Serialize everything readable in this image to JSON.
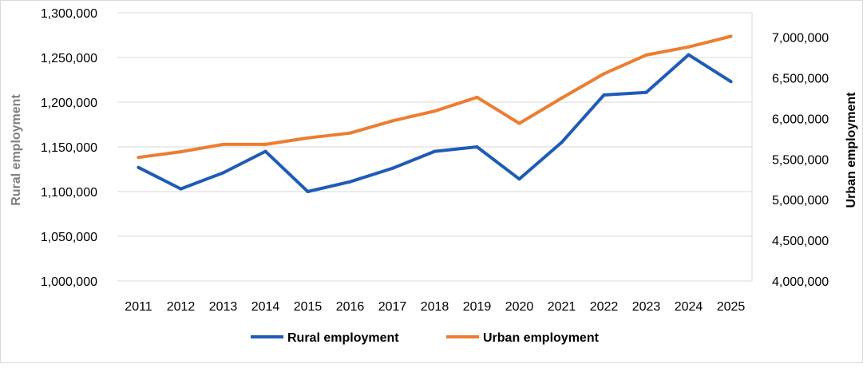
{
  "chart_data": {
    "type": "line",
    "x": [
      "2011",
      "2012",
      "2013",
      "2014",
      "2015",
      "2016",
      "2017",
      "2018",
      "2019",
      "2020",
      "2021",
      "2022",
      "2023",
      "2024",
      "2025"
    ],
    "series": [
      {
        "name": "Rural employment",
        "axis": "left",
        "color": "#1f5bb8",
        "values": [
          1127000,
          1103000,
          1121000,
          1145000,
          1100000,
          1111000,
          1126000,
          1145000,
          1150000,
          1114000,
          1155000,
          1208000,
          1211000,
          1253000,
          1223000
        ]
      },
      {
        "name": "Urban employment",
        "axis": "right",
        "color": "#ed7d31",
        "values": [
          5520000,
          5590000,
          5680000,
          5680000,
          5760000,
          5820000,
          5970000,
          6090000,
          6260000,
          5940000,
          6250000,
          6550000,
          6780000,
          6880000,
          7010000
        ]
      }
    ],
    "y_left": {
      "label": "Rural employment",
      "label_color": "#7f7f7f",
      "ylim": [
        1000000,
        1300000
      ],
      "ticks": [
        "1,000,000",
        "1,050,000",
        "1,100,000",
        "1,150,000",
        "1,200,000",
        "1,250,000",
        "1,300,000"
      ]
    },
    "y_right": {
      "label": "Urban employment",
      "label_color": "#000000",
      "ylim": [
        4000000,
        7300000
      ],
      "ticks": [
        "4,000,000",
        "4,500,000",
        "5,000,000",
        "5,500,000",
        "6,000,000",
        "6,500,000",
        "7,000,000"
      ]
    },
    "grid": true,
    "legend_position": "bottom"
  }
}
